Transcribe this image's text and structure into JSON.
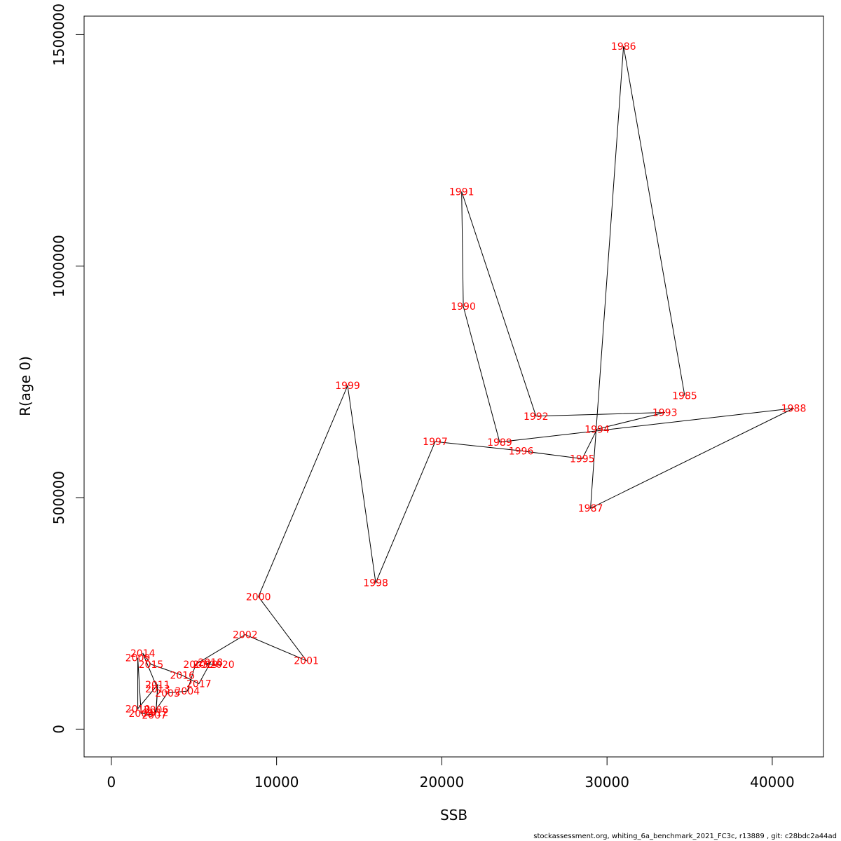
{
  "colors": {
    "label": "#ff0000",
    "line": "#000000",
    "axis": "#000000"
  },
  "footer": "stockassessment.org, whiting_6a_benchmark_2021_FC3c, r13889 , git: c28bdc2a44ad",
  "chart_data": {
    "type": "line",
    "title": "",
    "xlabel": "SSB",
    "ylabel": "R(age 0)",
    "xlim": [
      -1650,
      43100
    ],
    "ylim": [
      -60000,
      1540000
    ],
    "xticks": [
      0,
      10000,
      20000,
      30000,
      40000
    ],
    "yticks": [
      0,
      500000,
      1000000,
      1500000
    ],
    "xtick_labels": [
      "0",
      "10000",
      "20000",
      "30000",
      "40000"
    ],
    "ytick_labels": [
      "0",
      "500000",
      "1000000",
      "1500000"
    ],
    "grid": false,
    "legend": "none",
    "points": [
      {
        "year": "1985",
        "x": 34700,
        "y": 720000
      },
      {
        "year": "1986",
        "x": 31000,
        "y": 1475000
      },
      {
        "year": "1987",
        "x": 29000,
        "y": 477000
      },
      {
        "year": "1988",
        "x": 41300,
        "y": 693000
      },
      {
        "year": "1989",
        "x": 23500,
        "y": 620000
      },
      {
        "year": "1990",
        "x": 21300,
        "y": 913000
      },
      {
        "year": "1991",
        "x": 21200,
        "y": 1161000
      },
      {
        "year": "1992",
        "x": 25700,
        "y": 676000
      },
      {
        "year": "1993",
        "x": 33500,
        "y": 684000
      },
      {
        "year": "1994",
        "x": 29400,
        "y": 648000
      },
      {
        "year": "1995",
        "x": 28500,
        "y": 584000
      },
      {
        "year": "1996",
        "x": 24800,
        "y": 601000
      },
      {
        "year": "1997",
        "x": 19600,
        "y": 621000
      },
      {
        "year": "1998",
        "x": 16000,
        "y": 316000
      },
      {
        "year": "1999",
        "x": 14300,
        "y": 742000
      },
      {
        "year": "2000",
        "x": 8900,
        "y": 286000
      },
      {
        "year": "2001",
        "x": 11800,
        "y": 148000
      },
      {
        "year": "2002",
        "x": 8100,
        "y": 204000
      },
      {
        "year": "2003",
        "x": 5100,
        "y": 140000
      },
      {
        "year": "2004",
        "x": 4600,
        "y": 82000
      },
      {
        "year": "2005",
        "x": 3400,
        "y": 78000
      },
      {
        "year": "2006",
        "x": 2700,
        "y": 42000
      },
      {
        "year": "2007",
        "x": 2600,
        "y": 30000
      },
      {
        "year": "2008",
        "x": 1800,
        "y": 34000
      },
      {
        "year": "2009",
        "x": 1600,
        "y": 154000
      },
      {
        "year": "2010",
        "x": 1600,
        "y": 44000
      },
      {
        "year": "2011",
        "x": 2800,
        "y": 96000
      },
      {
        "year": "2012",
        "x": 2700,
        "y": 36000
      },
      {
        "year": "2013",
        "x": 2800,
        "y": 87000
      },
      {
        "year": "2014",
        "x": 1900,
        "y": 164000
      },
      {
        "year": "2015",
        "x": 2400,
        "y": 140000
      },
      {
        "year": "2016",
        "x": 4300,
        "y": 116000
      },
      {
        "year": "2017",
        "x": 5300,
        "y": 98000
      },
      {
        "year": "2018",
        "x": 6000,
        "y": 144000
      },
      {
        "year": "2019",
        "x": 5700,
        "y": 140000
      },
      {
        "year": "2020",
        "x": 6700,
        "y": 140000
      }
    ]
  }
}
